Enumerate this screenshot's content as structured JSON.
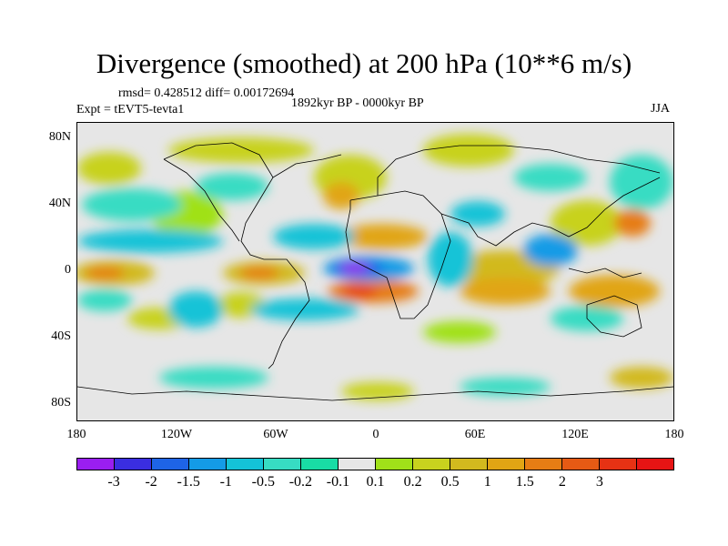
{
  "title": "Divergence (smoothed) at 200 hPa (10**6 m/s)",
  "stats_text": "rmsd= 0.428512 diff= 0.00172694",
  "experiment_text": "Expt = tEVT5-tevta1",
  "period_text": "1892kyr BP - 0000kyr BP",
  "season_text": "JJA",
  "y_ticks": [
    "80N",
    "40N",
    "0",
    "40S",
    "80S"
  ],
  "x_ticks": [
    "180",
    "120W",
    "60W",
    "0",
    "60E",
    "120E",
    "180"
  ],
  "colorbar": {
    "colors": [
      "#9a1ef0",
      "#3a2ee0",
      "#1e64e6",
      "#149be6",
      "#14c3d7",
      "#37dcc3",
      "#19dca5",
      "#e6e6e6",
      "#a0e119",
      "#c8d21e",
      "#d2b91e",
      "#e1a514",
      "#e67d14",
      "#e65a14",
      "#e63214",
      "#e61414"
    ],
    "labels": [
      "-3",
      "-2",
      "-1.5",
      "-1",
      "-0.5",
      "-0.2",
      "-0.1",
      "0.1",
      "0.2",
      "0.5",
      "1",
      "1.5",
      "2",
      "3"
    ]
  }
}
